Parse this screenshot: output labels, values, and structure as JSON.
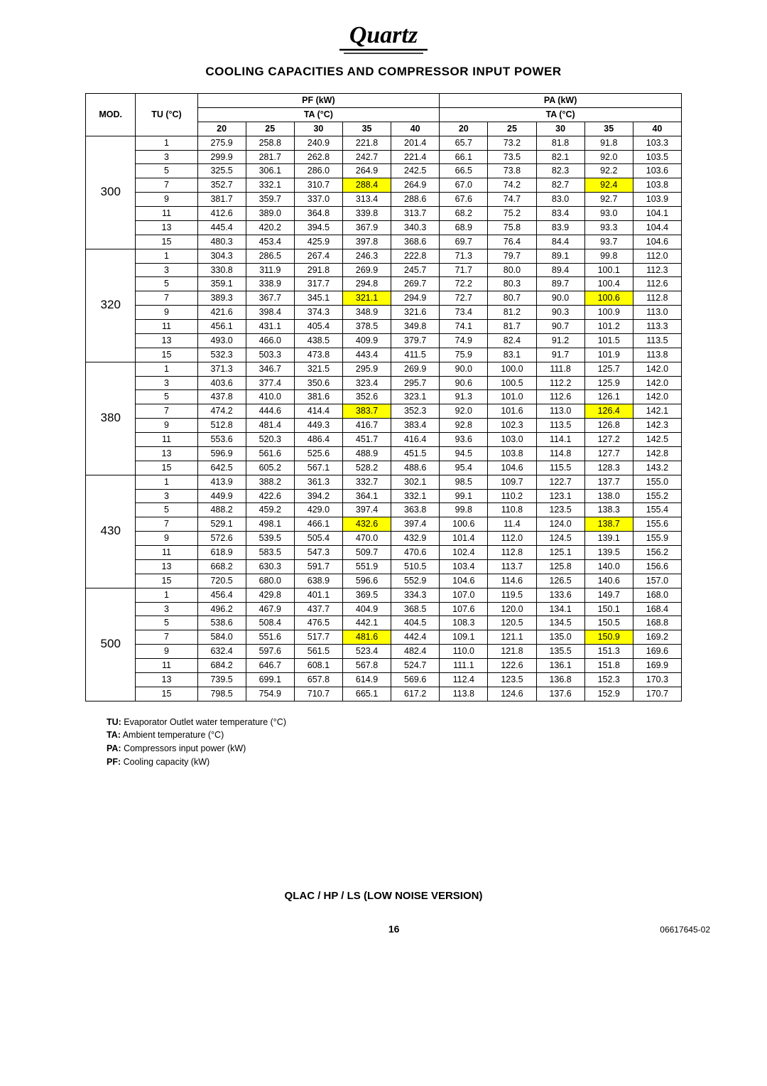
{
  "logo_text": "Quartz",
  "title": "COOLING CAPACITIES AND COMPRESSOR INPUT POWER",
  "header": {
    "mod": "MOD.",
    "tu": "TU (°C)",
    "pf": "PF (kW)",
    "pa": "PA (kW)",
    "ta": "TA (°C)",
    "temps": [
      "20",
      "25",
      "30",
      "35",
      "40",
      "20",
      "25",
      "30",
      "35",
      "40"
    ]
  },
  "groups": [
    {
      "mod": "300",
      "rows": [
        {
          "tu": "1",
          "v": [
            "275.9",
            "258.8",
            "240.9",
            "221.8",
            "201.4",
            "65.7",
            "73.2",
            "81.8",
            "91.8",
            "103.3"
          ],
          "hl": []
        },
        {
          "tu": "3",
          "v": [
            "299.9",
            "281.7",
            "262.8",
            "242.7",
            "221.4",
            "66.1",
            "73.5",
            "82.1",
            "92.0",
            "103.5"
          ],
          "hl": []
        },
        {
          "tu": "5",
          "v": [
            "325.5",
            "306.1",
            "286.0",
            "264.9",
            "242.5",
            "66.5",
            "73.8",
            "82.3",
            "92.2",
            "103.6"
          ],
          "hl": []
        },
        {
          "tu": "7",
          "v": [
            "352.7",
            "332.1",
            "310.7",
            "288.4",
            "264.9",
            "67.0",
            "74.2",
            "82.7",
            "92.4",
            "103.8"
          ],
          "hl": [
            3,
            8
          ]
        },
        {
          "tu": "9",
          "v": [
            "381.7",
            "359.7",
            "337.0",
            "313.4",
            "288.6",
            "67.6",
            "74.7",
            "83.0",
            "92.7",
            "103.9"
          ],
          "hl": []
        },
        {
          "tu": "11",
          "v": [
            "412.6",
            "389.0",
            "364.8",
            "339.8",
            "313.7",
            "68.2",
            "75.2",
            "83.4",
            "93.0",
            "104.1"
          ],
          "hl": []
        },
        {
          "tu": "13",
          "v": [
            "445.4",
            "420.2",
            "394.5",
            "367.9",
            "340.3",
            "68.9",
            "75.8",
            "83.9",
            "93.3",
            "104.4"
          ],
          "hl": []
        },
        {
          "tu": "15",
          "v": [
            "480.3",
            "453.4",
            "425.9",
            "397.8",
            "368.6",
            "69.7",
            "76.4",
            "84.4",
            "93.7",
            "104.6"
          ],
          "hl": []
        }
      ]
    },
    {
      "mod": "320",
      "rows": [
        {
          "tu": "1",
          "v": [
            "304.3",
            "286.5",
            "267.4",
            "246.3",
            "222.8",
            "71.3",
            "79.7",
            "89.1",
            "99.8",
            "112.0"
          ],
          "hl": []
        },
        {
          "tu": "3",
          "v": [
            "330.8",
            "311.9",
            "291.8",
            "269.9",
            "245.7",
            "71.7",
            "80.0",
            "89.4",
            "100.1",
            "112.3"
          ],
          "hl": []
        },
        {
          "tu": "5",
          "v": [
            "359.1",
            "338.9",
            "317.7",
            "294.8",
            "269.7",
            "72.2",
            "80.3",
            "89.7",
            "100.4",
            "112.6"
          ],
          "hl": []
        },
        {
          "tu": "7",
          "v": [
            "389.3",
            "367.7",
            "345.1",
            "321.1",
            "294.9",
            "72.7",
            "80.7",
            "90.0",
            "100.6",
            "112.8"
          ],
          "hl": [
            3,
            8
          ]
        },
        {
          "tu": "9",
          "v": [
            "421.6",
            "398.4",
            "374.3",
            "348.9",
            "321.6",
            "73.4",
            "81.2",
            "90.3",
            "100.9",
            "113.0"
          ],
          "hl": []
        },
        {
          "tu": "11",
          "v": [
            "456.1",
            "431.1",
            "405.4",
            "378.5",
            "349.8",
            "74.1",
            "81.7",
            "90.7",
            "101.2",
            "113.3"
          ],
          "hl": []
        },
        {
          "tu": "13",
          "v": [
            "493.0",
            "466.0",
            "438.5",
            "409.9",
            "379.7",
            "74.9",
            "82.4",
            "91.2",
            "101.5",
            "113.5"
          ],
          "hl": []
        },
        {
          "tu": "15",
          "v": [
            "532.3",
            "503.3",
            "473.8",
            "443.4",
            "411.5",
            "75.9",
            "83.1",
            "91.7",
            "101.9",
            "113.8"
          ],
          "hl": []
        }
      ]
    },
    {
      "mod": "380",
      "rows": [
        {
          "tu": "1",
          "v": [
            "371.3",
            "346.7",
            "321.5",
            "295.9",
            "269.9",
            "90.0",
            "100.0",
            "111.8",
            "125.7",
            "142.0"
          ],
          "hl": []
        },
        {
          "tu": "3",
          "v": [
            "403.6",
            "377.4",
            "350.6",
            "323.4",
            "295.7",
            "90.6",
            "100.5",
            "112.2",
            "125.9",
            "142.0"
          ],
          "hl": []
        },
        {
          "tu": "5",
          "v": [
            "437.8",
            "410.0",
            "381.6",
            "352.6",
            "323.1",
            "91.3",
            "101.0",
            "112.6",
            "126.1",
            "142.0"
          ],
          "hl": []
        },
        {
          "tu": "7",
          "v": [
            "474.2",
            "444.6",
            "414.4",
            "383.7",
            "352.3",
            "92.0",
            "101.6",
            "113.0",
            "126.4",
            "142.1"
          ],
          "hl": [
            3,
            8
          ]
        },
        {
          "tu": "9",
          "v": [
            "512.8",
            "481.4",
            "449.3",
            "416.7",
            "383.4",
            "92.8",
            "102.3",
            "113.5",
            "126.8",
            "142.3"
          ],
          "hl": []
        },
        {
          "tu": "11",
          "v": [
            "553.6",
            "520.3",
            "486.4",
            "451.7",
            "416.4",
            "93.6",
            "103.0",
            "114.1",
            "127.2",
            "142.5"
          ],
          "hl": []
        },
        {
          "tu": "13",
          "v": [
            "596.9",
            "561.6",
            "525.6",
            "488.9",
            "451.5",
            "94.5",
            "103.8",
            "114.8",
            "127.7",
            "142.8"
          ],
          "hl": []
        },
        {
          "tu": "15",
          "v": [
            "642.5",
            "605.2",
            "567.1",
            "528.2",
            "488.6",
            "95.4",
            "104.6",
            "115.5",
            "128.3",
            "143.2"
          ],
          "hl": []
        }
      ]
    },
    {
      "mod": "430",
      "rows": [
        {
          "tu": "1",
          "v": [
            "413.9",
            "388.2",
            "361.3",
            "332.7",
            "302.1",
            "98.5",
            "109.7",
            "122.7",
            "137.7",
            "155.0"
          ],
          "hl": []
        },
        {
          "tu": "3",
          "v": [
            "449.9",
            "422.6",
            "394.2",
            "364.1",
            "332.1",
            "99.1",
            "110.2",
            "123.1",
            "138.0",
            "155.2"
          ],
          "hl": []
        },
        {
          "tu": "5",
          "v": [
            "488.2",
            "459.2",
            "429.0",
            "397.4",
            "363.8",
            "99.8",
            "110.8",
            "123.5",
            "138.3",
            "155.4"
          ],
          "hl": []
        },
        {
          "tu": "7",
          "v": [
            "529.1",
            "498.1",
            "466.1",
            "432.6",
            "397.4",
            "100.6",
            "11.4",
            "124.0",
            "138.7",
            "155.6"
          ],
          "hl": [
            3,
            8
          ]
        },
        {
          "tu": "9",
          "v": [
            "572.6",
            "539.5",
            "505.4",
            "470.0",
            "432.9",
            "101.4",
            "112.0",
            "124.5",
            "139.1",
            "155.9"
          ],
          "hl": []
        },
        {
          "tu": "11",
          "v": [
            "618.9",
            "583.5",
            "547.3",
            "509.7",
            "470.6",
            "102.4",
            "112.8",
            "125.1",
            "139.5",
            "156.2"
          ],
          "hl": []
        },
        {
          "tu": "13",
          "v": [
            "668.2",
            "630.3",
            "591.7",
            "551.9",
            "510.5",
            "103.4",
            "113.7",
            "125.8",
            "140.0",
            "156.6"
          ],
          "hl": []
        },
        {
          "tu": "15",
          "v": [
            "720.5",
            "680.0",
            "638.9",
            "596.6",
            "552.9",
            "104.6",
            "114.6",
            "126.5",
            "140.6",
            "157.0"
          ],
          "hl": []
        }
      ]
    },
    {
      "mod": "500",
      "rows": [
        {
          "tu": "1",
          "v": [
            "456.4",
            "429.8",
            "401.1",
            "369.5",
            "334.3",
            "107.0",
            "119.5",
            "133.6",
            "149.7",
            "168.0"
          ],
          "hl": []
        },
        {
          "tu": "3",
          "v": [
            "496.2",
            "467.9",
            "437.7",
            "404.9",
            "368.5",
            "107.6",
            "120.0",
            "134.1",
            "150.1",
            "168.4"
          ],
          "hl": []
        },
        {
          "tu": "5",
          "v": [
            "538.6",
            "508.4",
            "476.5",
            "442.1",
            "404.5",
            "108.3",
            "120.5",
            "134.5",
            "150.5",
            "168.8"
          ],
          "hl": []
        },
        {
          "tu": "7",
          "v": [
            "584.0",
            "551.6",
            "517.7",
            "481.6",
            "442.4",
            "109.1",
            "121.1",
            "135.0",
            "150.9",
            "169.2"
          ],
          "hl": [
            3,
            8
          ]
        },
        {
          "tu": "9",
          "v": [
            "632.4",
            "597.6",
            "561.5",
            "523.4",
            "482.4",
            "110.0",
            "121.8",
            "135.5",
            "151.3",
            "169.6"
          ],
          "hl": []
        },
        {
          "tu": "11",
          "v": [
            "684.2",
            "646.7",
            "608.1",
            "567.8",
            "524.7",
            "111.1",
            "122.6",
            "136.1",
            "151.8",
            "169.9"
          ],
          "hl": []
        },
        {
          "tu": "13",
          "v": [
            "739.5",
            "699.1",
            "657.8",
            "614.9",
            "569.6",
            "112.4",
            "123.5",
            "136.8",
            "152.3",
            "170.3"
          ],
          "hl": []
        },
        {
          "tu": "15",
          "v": [
            "798.5",
            "754.9",
            "710.7",
            "665.1",
            "617.2",
            "113.8",
            "124.6",
            "137.6",
            "152.9",
            "170.7"
          ],
          "hl": []
        }
      ]
    }
  ],
  "legend": [
    {
      "k": "TU:",
      "v": " Evaporator Outlet water temperature (°C)"
    },
    {
      "k": "TA:",
      "v": " Ambient temperature (°C)"
    },
    {
      "k": "PA:",
      "v": " Compressors input power (kW)"
    },
    {
      "k": "PF:",
      "v": " Cooling capacity (kW)"
    }
  ],
  "footer_title": "QLAC  / HP / LS (LOW NOISE VERSION)",
  "page_number": "16",
  "doc_number": "06617645-02"
}
